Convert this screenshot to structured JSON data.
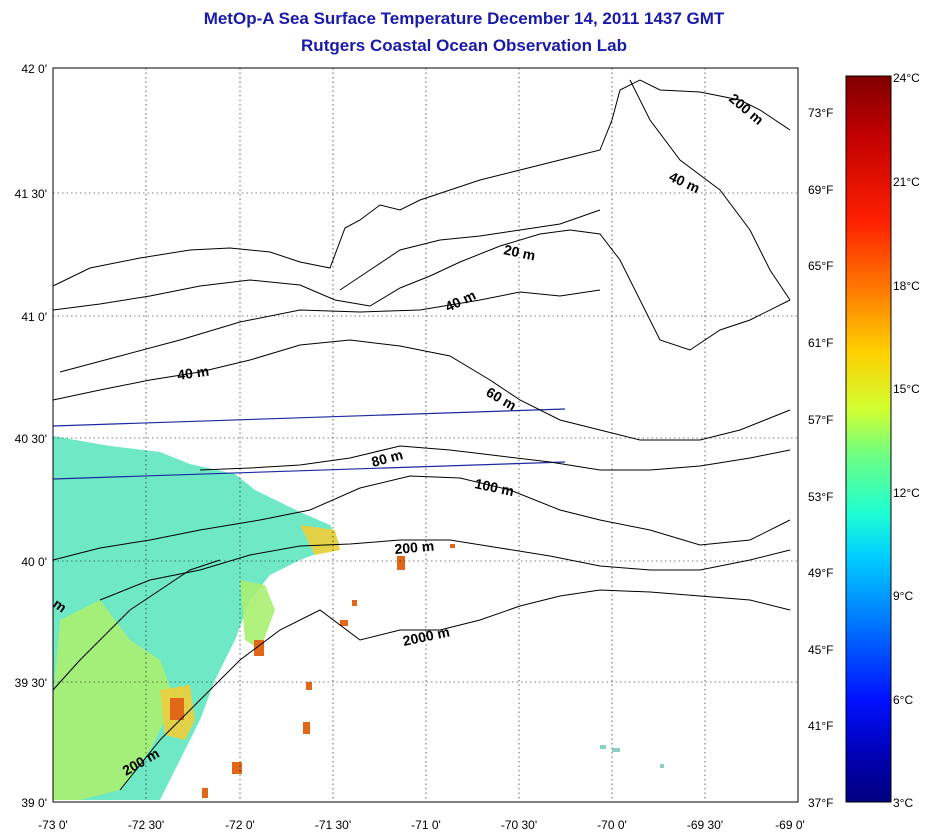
{
  "title": {
    "line1": "MetOp-A Sea Surface Temperature December 14, 2011 1437 GMT",
    "line2": "Rutgers Coastal Ocean Observation Lab"
  },
  "axes": {
    "lon_labels": [
      "-73 0'",
      "-72 30'",
      "-72 0'",
      "-71 30'",
      "-71 0'",
      "-70 30'",
      "-70 0'",
      "-69 30'",
      "-69 0'"
    ],
    "lat_labels": [
      "42 0'",
      "41 30'",
      "41 0'",
      "40 30'",
      "40 0'",
      "39 30'",
      "39 0'"
    ],
    "f_labels": [
      "73°F",
      "69°F",
      "65°F",
      "61°F",
      "57°F",
      "53°F",
      "49°F",
      "45°F",
      "41°F",
      "37°F"
    ]
  },
  "colorbar": {
    "labels": [
      "24°C",
      "21°C",
      "18°C",
      "15°C",
      "12°C",
      "9°C",
      "6°C",
      "3°C"
    ],
    "colors": [
      "#800000",
      "#c00000",
      "#ff2000",
      "#ff8000",
      "#ffd000",
      "#d0ff30",
      "#70ff80",
      "#20ffd0",
      "#00d0ff",
      "#0070ff",
      "#0010ff",
      "#0000b0",
      "#000080"
    ]
  },
  "contour_labels": [
    "200 m",
    "40 m",
    "20 m",
    "40 m",
    "40 m",
    "60 m",
    "80 m",
    "100 m",
    "200 m",
    "2000 m",
    "200 m",
    "m"
  ],
  "map_colors": {
    "sst_cool": "#5fe6c0",
    "sst_mid": "#a8ef70",
    "sst_warm": "#e8d040",
    "sst_hot": "#e06818",
    "track": "#1a2aa0",
    "contour": "#000000"
  }
}
